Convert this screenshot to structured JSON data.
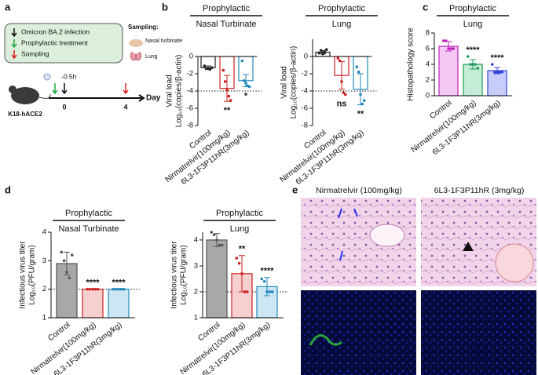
{
  "panel_labels": [
    "a",
    "b",
    "c",
    "d",
    "e"
  ],
  "diagram": {
    "legend": [
      "Omicron BA.2 infection",
      "Prophylactic treatment",
      "Sampling"
    ],
    "sampling_title": "Sampling:",
    "sampling_items": [
      "Nasal turbinate",
      "Lung"
    ],
    "mouse": "K18-hACE2",
    "timeline": [
      "-0.5h",
      "0",
      "4"
    ],
    "timeline_unit": "Day"
  },
  "chart_data": [
    {
      "type": "bar",
      "title": "Prophylactic",
      "subtitle": "Nasal Turbinate",
      "ylabel": [
        "Viral load",
        "Log₁₀(copies/β-actin)"
      ],
      "categories": [
        "Control",
        "Nirmatrelvir(100mg/kg)",
        "6L3-1F3P11hR(3mg/kg)"
      ],
      "values": [
        -1.3,
        -3.7,
        -2.8
      ],
      "errors": [
        0.2,
        1.5,
        0.7
      ],
      "points": [
        [
          -1.1,
          -1.4,
          -1.4,
          -1.5,
          -1.3
        ],
        [
          -1.6,
          -2.9,
          -3.9,
          -4.6,
          -5.1
        ],
        [
          -0.5,
          -2.8,
          -3.1,
          -3.4,
          -3.5
        ]
      ],
      "annotations": [
        null,
        "**",
        "*"
      ],
      "colors": [
        "#222222",
        "#cc2222",
        "#2288bb"
      ],
      "fills": [
        "#ffffff",
        "#ffffff",
        "#ffffff"
      ],
      "ylim": [
        -8,
        0
      ],
      "yticks": [
        0,
        -2,
        -4,
        -6,
        -8
      ],
      "reference_line": -4
    },
    {
      "type": "bar",
      "title": "Prophylactic",
      "subtitle": "Lung",
      "ylabel": [
        "Viral load",
        "Log₁₀(copies/β-actin)"
      ],
      "categories": [
        "Control",
        "Nirmatrelvir(100mg/kg)",
        "6L3-1F3P11hR(3mg/kg)"
      ],
      "values": [
        0.5,
        -2.2,
        -3.8
      ],
      "errors": [
        0.2,
        1.6,
        1.8
      ],
      "points": [
        [
          0.4,
          0.7,
          0.3,
          0.5,
          0.8
        ],
        [
          -0.2,
          -0.5,
          -2.9,
          -4.2,
          -4.4
        ],
        [
          -1.2,
          -1.8,
          -4.4,
          -5.5,
          -5.1
        ]
      ],
      "annotations": [
        null,
        "ns",
        "**"
      ],
      "colors": [
        "#222222",
        "#cc2222",
        "#2288bb"
      ],
      "fills": [
        "#ffffff",
        "#ffffff",
        "#ffffff"
      ],
      "ylim": [
        -8,
        2
      ],
      "yticks": [
        0,
        -2,
        -4,
        -6,
        -8
      ],
      "reference_line": -4
    },
    {
      "type": "bar",
      "title": "Prophylactic",
      "subtitle": "Lung",
      "ylabel": [
        "Histopathology score"
      ],
      "categories": [
        "Control",
        "Nirmatrelvir(100mg/kg)",
        "6L3-1F3P11hR(3mg/kg)"
      ],
      "values": [
        6.3,
        4.0,
        3.2
      ],
      "errors": [
        0.6,
        0.6,
        0.4
      ],
      "points": [
        [
          7,
          7,
          6,
          6,
          6
        ],
        [
          5,
          4,
          4,
          4,
          3.5
        ],
        [
          4,
          3,
          3,
          3,
          3
        ]
      ],
      "annotations": [
        null,
        "****",
        "****"
      ],
      "colors": [
        "#bb22bb",
        "#22995a",
        "#3344dd"
      ],
      "fills": [
        "#f3c8f3",
        "#c4ecd6",
        "#c8ccf8"
      ],
      "ylim": [
        0,
        8
      ],
      "yticks": [
        0,
        2,
        4,
        6,
        8
      ]
    },
    {
      "type": "bar",
      "title": "Prophylactic",
      "subtitle": "Nasal Turbinate",
      "ylabel": [
        "Infectious virus titer",
        "Log₁₀(PFU/gram)"
      ],
      "categories": [
        "Control",
        "Nirmatrelvir(100mg/kg)",
        "6L3-1F3P11hR(3mg/kg)"
      ],
      "values": [
        2.9,
        2.0,
        2.0
      ],
      "errors": [
        0.4,
        0,
        0
      ],
      "points": [
        [
          3.3,
          3.0,
          2.6,
          2.4,
          3.2
        ],
        [
          2,
          2,
          2,
          2,
          2
        ],
        [
          2,
          2,
          2,
          2,
          2
        ]
      ],
      "annotations": [
        null,
        "****",
        "****"
      ],
      "colors": [
        "#555555",
        "#cc2222",
        "#2288bb"
      ],
      "fills": [
        "#a8a8a8",
        "#f6d0d0",
        "#cce6f4"
      ],
      "ylim": [
        1,
        4
      ],
      "yticks": [
        1,
        2,
        3,
        4
      ],
      "reference_line": 2
    },
    {
      "type": "bar",
      "title": "Prophylactic",
      "subtitle": "Lung",
      "ylabel": [
        "Infectious virus titer",
        "Log₁₀(PFU/gram)"
      ],
      "categories": [
        "Control",
        "Nirmatrelvir(100mg/kg)",
        "6L3-1F3P11hR(3mg/kg)"
      ],
      "values": [
        4.0,
        2.7,
        2.2
      ],
      "errors": [
        0.25,
        0.7,
        0.35
      ],
      "points": [
        [
          4.3,
          4.2,
          4.0,
          3.8,
          3.8
        ],
        [
          3.3,
          3.1,
          2.7,
          2.0,
          2.0
        ],
        [
          2.5,
          2.4,
          2.0,
          2.0,
          2.0
        ]
      ],
      "annotations": [
        null,
        "**",
        "****"
      ],
      "colors": [
        "#555555",
        "#cc2222",
        "#2288bb"
      ],
      "fills": [
        "#a8a8a8",
        "#f6d0d0",
        "#cce6f4"
      ],
      "ylim": [
        1,
        4.3
      ],
      "yticks": [
        1,
        2,
        3,
        4
      ],
      "reference_line": 2
    }
  ],
  "images": {
    "titles": [
      "Nirmatrelvir (100mg/kg)",
      "6L3-1F3P11hR (3mg/kg)"
    ]
  }
}
